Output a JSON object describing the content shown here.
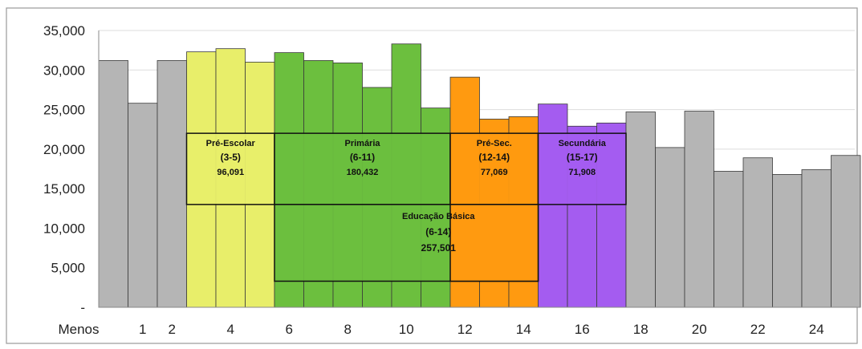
{
  "chart_data": {
    "type": "bar",
    "categories": [
      "Menos",
      "1",
      "2",
      "3",
      "4",
      "5",
      "6",
      "7",
      "8",
      "9",
      "10",
      "11",
      "12",
      "13",
      "14",
      "15",
      "16",
      "17",
      "18",
      "19",
      "20",
      "21",
      "22",
      "23",
      "24",
      "25"
    ],
    "values": [
      31200,
      25800,
      31200,
      32300,
      32700,
      31000,
      32200,
      31200,
      30900,
      27800,
      33300,
      25200,
      29100,
      23800,
      24100,
      25700,
      22900,
      23300,
      24700,
      20200,
      24800,
      17200,
      18900,
      16800,
      17400,
      19200
    ],
    "bar_colors": [
      "#b5b5b5",
      "#b5b5b5",
      "#b5b5b5",
      "#e8ee6a",
      "#e8ee6a",
      "#e8ee6a",
      "#6cbf3e",
      "#6cbf3e",
      "#6cbf3e",
      "#6cbf3e",
      "#6cbf3e",
      "#6cbf3e",
      "#ff9a10",
      "#ff9a10",
      "#ff9a10",
      "#a45cf0",
      "#a45cf0",
      "#a45cf0",
      "#b5b5b5",
      "#b5b5b5",
      "#b5b5b5",
      "#b5b5b5",
      "#b5b5b5",
      "#b5b5b5",
      "#b5b5b5",
      "#b5b5b5"
    ],
    "x_tick_labels": [
      "Menos",
      "1",
      "2",
      "4",
      "6",
      "8",
      "10",
      "12",
      "14",
      "16",
      "18",
      "20",
      "22",
      "24"
    ],
    "y_ticks": [
      "-",
      "5,000",
      "10,000",
      "15,000",
      "20,000",
      "25,000",
      "30,000",
      "35,000"
    ],
    "ylim": [
      0,
      35000
    ],
    "grid": true,
    "annotation_boxes": [
      {
        "title": "Pré-Escolar",
        "range": "(3-5)",
        "total": "96,091",
        "fill": "#e8ee6a",
        "from_category": "3",
        "to_category": "5",
        "y_range": [
          13000,
          22000
        ]
      },
      {
        "title": "Primária",
        "range": "(6-11)",
        "total": "180,432",
        "fill": "#6cbf3e",
        "from_category": "6",
        "to_category": "11",
        "y_range": [
          13000,
          22000
        ]
      },
      {
        "title": "Pré-Sec.",
        "range": "(12-14)",
        "total": "77,069",
        "fill": "#ff9a10",
        "from_category": "12",
        "to_category": "14",
        "y_range": [
          13000,
          22000
        ]
      },
      {
        "title": "Secundária",
        "range": "(15-17)",
        "total": "71,908",
        "fill": "#a45cf0",
        "from_category": "15",
        "to_category": "17",
        "y_range": [
          13000,
          22000
        ]
      },
      {
        "title": "Educação Básica",
        "range": "(6-14)",
        "total": "257,501",
        "fill": "#6cbf3e",
        "from_category": "6",
        "to_category": "14",
        "y_range": [
          3300,
          13000
        ]
      }
    ]
  }
}
